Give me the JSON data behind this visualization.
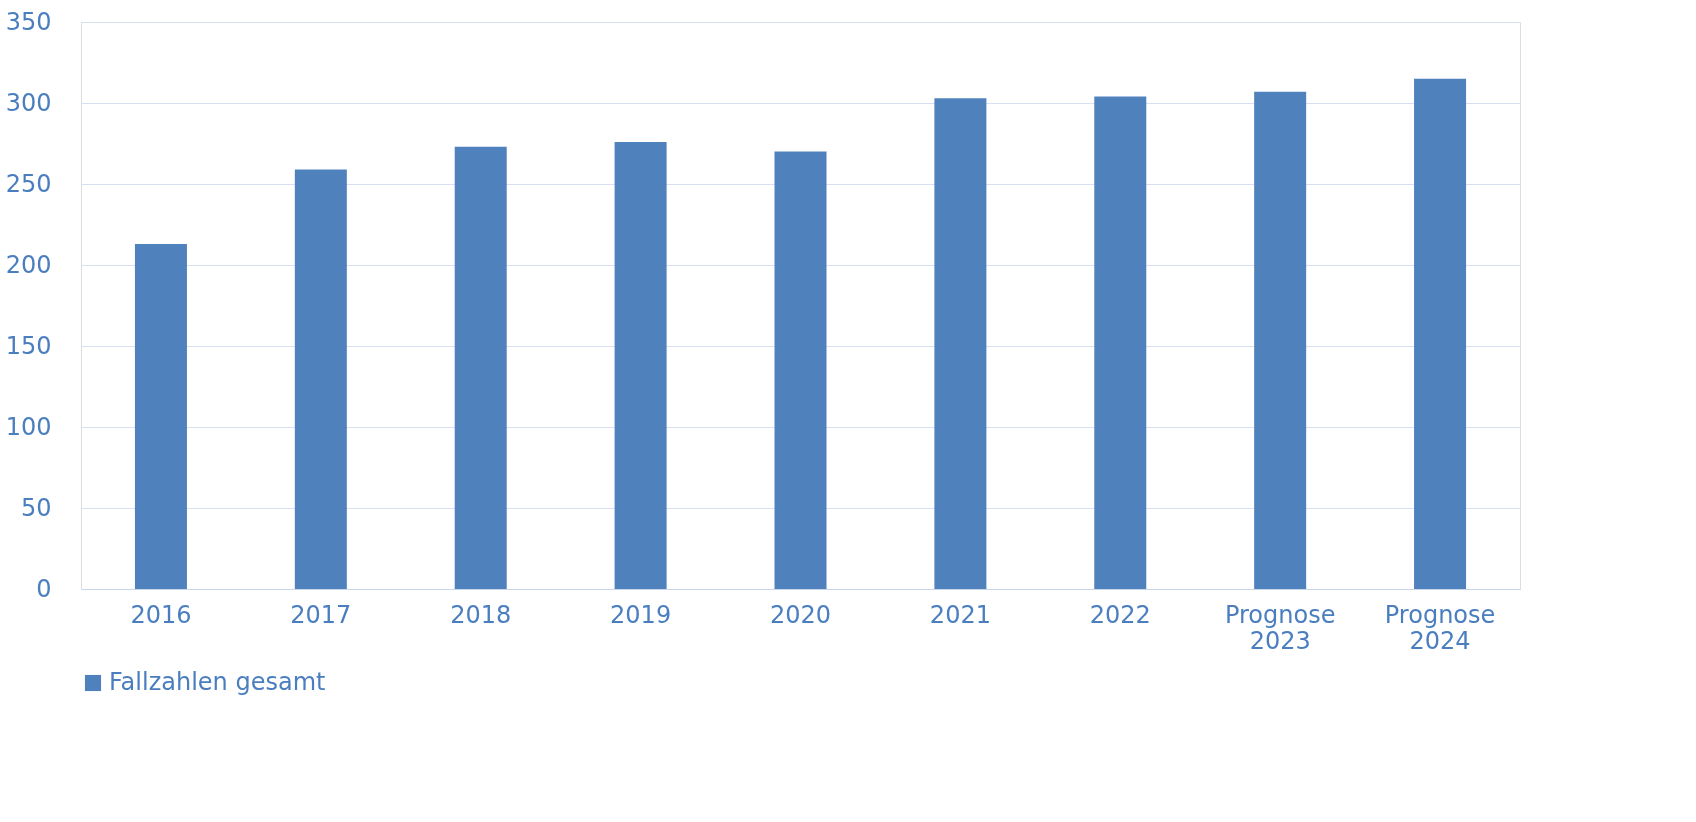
{
  "chart_data": {
    "type": "bar",
    "categories": [
      "2016",
      "2017",
      "2018",
      "2019",
      "2020",
      "2021",
      "2022",
      "Prognose 2023",
      "Prognose 2024"
    ],
    "series": [
      {
        "name": "Fallzahlen gesamt",
        "color": "#4f81bd",
        "values": [
          213,
          259,
          273,
          276,
          270,
          303,
          304,
          307,
          315
        ]
      }
    ],
    "ylim": [
      0,
      350
    ],
    "yticks": [
      0,
      50,
      100,
      150,
      200,
      250,
      300,
      350
    ],
    "grid": "y",
    "legend": "bottom"
  }
}
